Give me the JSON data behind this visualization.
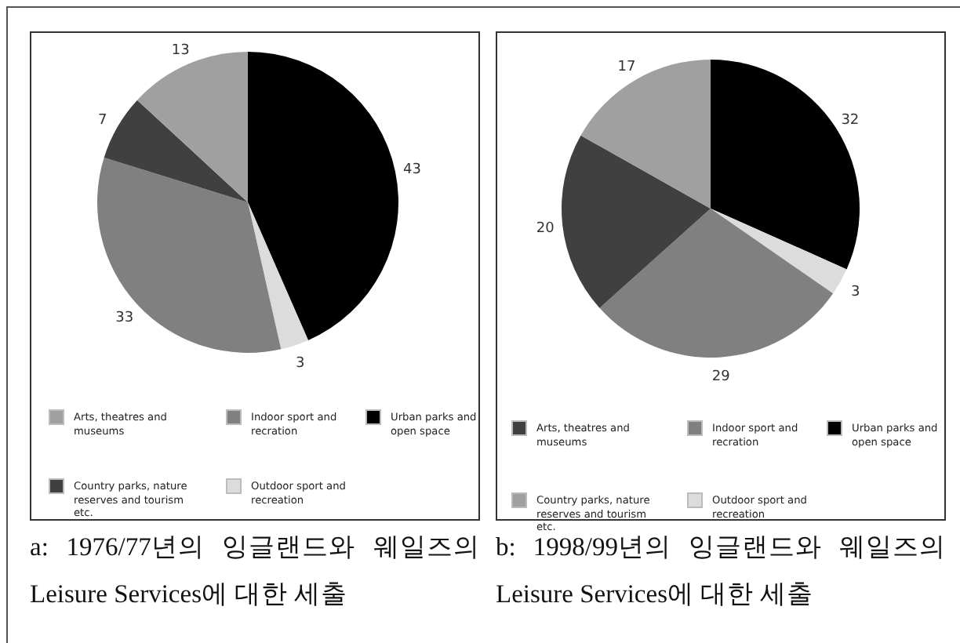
{
  "chart_data": [
    {
      "type": "pie",
      "categories": [
        "Urban parks and open space",
        "Outdoor sport and recreation",
        "Indoor sport and recration",
        "Country parks, nature reserves and tourism etc.",
        "Arts, theatres and museums"
      ],
      "values": [
        43,
        3,
        33,
        7,
        13
      ],
      "colors": [
        "#000000",
        "#dcdcdc",
        "#808080",
        "#404040",
        "#a0a0a0"
      ],
      "data_labels": true,
      "legend": "bottom",
      "annotations": [
        "a: 1976/77년의 잉글랜드와 웨일즈의 Leisure Services에 대한 세출"
      ]
    },
    {
      "type": "pie",
      "categories": [
        "Urban parks and open space",
        "Outdoor sport and recreation",
        "Indoor sport and recration",
        "Arts, theatres and museums",
        "Country parks, nature reserves and tourism etc."
      ],
      "values": [
        32,
        3,
        29,
        20,
        17
      ],
      "colors": [
        "#000000",
        "#dcdcdc",
        "#808080",
        "#404040",
        "#a0a0a0"
      ],
      "data_labels": true,
      "legend": "bottom",
      "annotations": [
        "b: 1998/99년의 잉글랜드와 웨일즈의 Leisure Services에 대한 세출"
      ]
    }
  ]
}
